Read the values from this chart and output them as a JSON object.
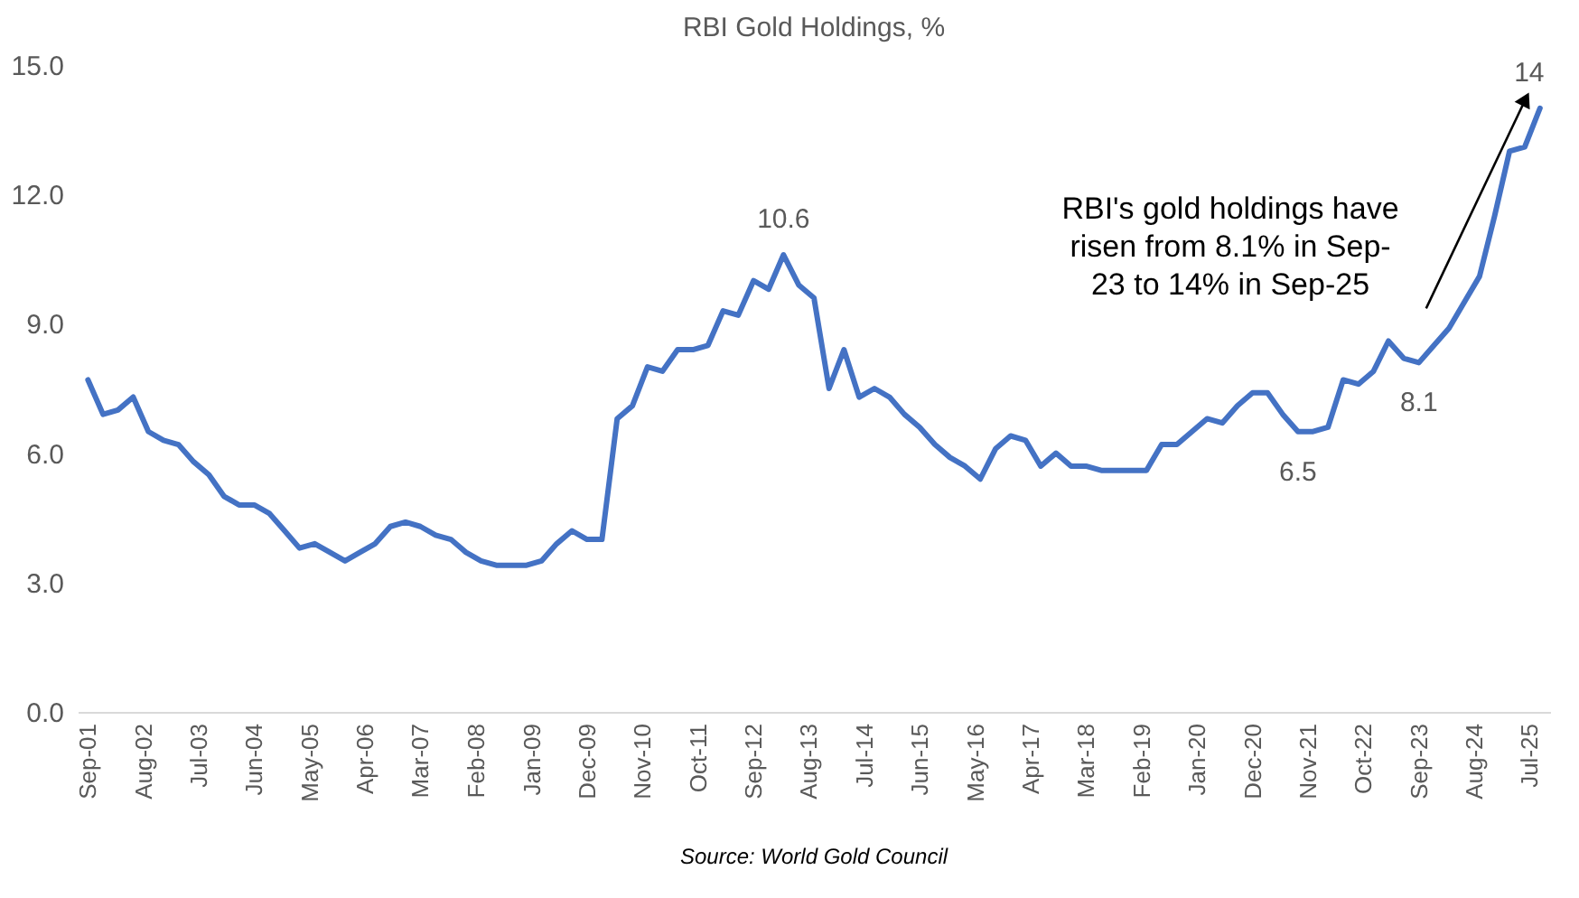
{
  "chart_data": {
    "type": "line",
    "title": "RBI Gold Holdings, %",
    "x": [
      "2001-09",
      "2001-12",
      "2002-03",
      "2002-06",
      "2002-09",
      "2002-12",
      "2003-03",
      "2003-06",
      "2003-09",
      "2003-12",
      "2004-03",
      "2004-06",
      "2004-09",
      "2004-12",
      "2005-03",
      "2005-06",
      "2005-09",
      "2005-12",
      "2006-03",
      "2006-06",
      "2006-09",
      "2006-12",
      "2007-03",
      "2007-06",
      "2007-09",
      "2007-12",
      "2008-03",
      "2008-06",
      "2008-09",
      "2008-12",
      "2009-03",
      "2009-06",
      "2009-09",
      "2009-12",
      "2010-03",
      "2010-06",
      "2010-09",
      "2010-12",
      "2011-03",
      "2011-06",
      "2011-09",
      "2011-12",
      "2012-03",
      "2012-06",
      "2012-09",
      "2012-12",
      "2013-03",
      "2013-06",
      "2013-09",
      "2013-12",
      "2014-03",
      "2014-06",
      "2014-09",
      "2014-12",
      "2015-03",
      "2015-06",
      "2015-09",
      "2015-12",
      "2016-03",
      "2016-06",
      "2016-09",
      "2016-12",
      "2017-03",
      "2017-06",
      "2017-09",
      "2017-12",
      "2018-03",
      "2018-06",
      "2018-09",
      "2018-12",
      "2019-03",
      "2019-06",
      "2019-09",
      "2019-12",
      "2020-03",
      "2020-06",
      "2020-09",
      "2020-12",
      "2021-03",
      "2021-06",
      "2021-09",
      "2021-12",
      "2022-03",
      "2022-06",
      "2022-09",
      "2022-12",
      "2023-03",
      "2023-06",
      "2023-09",
      "2023-12",
      "2024-03",
      "2024-06",
      "2024-09",
      "2024-12",
      "2025-03",
      "2025-06",
      "2025-09"
    ],
    "series": [
      {
        "color": "#4472c4",
        "values": [
          7.7,
          6.9,
          7.0,
          7.3,
          6.5,
          6.3,
          6.2,
          5.8,
          5.5,
          5.0,
          4.8,
          4.8,
          4.6,
          4.2,
          3.8,
          3.9,
          3.7,
          3.5,
          3.7,
          3.9,
          4.3,
          4.4,
          4.3,
          4.1,
          4.0,
          3.7,
          3.5,
          3.4,
          3.4,
          3.4,
          3.5,
          3.9,
          4.2,
          4.0,
          4.0,
          6.8,
          7.1,
          8.0,
          7.9,
          8.4,
          8.4,
          8.5,
          9.3,
          9.2,
          10.0,
          9.8,
          10.6,
          9.9,
          9.6,
          7.5,
          8.4,
          7.3,
          7.5,
          7.3,
          6.9,
          6.6,
          6.2,
          5.9,
          5.7,
          5.4,
          6.1,
          6.4,
          6.3,
          5.7,
          6.0,
          5.7,
          5.7,
          5.6,
          5.6,
          5.6,
          5.6,
          6.2,
          6.2,
          6.5,
          6.8,
          6.7,
          7.1,
          7.4,
          7.4,
          6.9,
          6.5,
          6.5,
          6.6,
          7.7,
          7.6,
          7.9,
          8.6,
          8.2,
          8.1,
          8.5,
          8.9,
          9.5,
          10.1,
          11.5,
          13.0,
          13.1,
          14.0
        ]
      }
    ],
    "xlim": [
      "2001-07",
      "2025-11"
    ],
    "xticks": [
      {
        "value": "2001-09",
        "label": "Sep-01"
      },
      {
        "value": "2002-08",
        "label": "Aug-02"
      },
      {
        "value": "2003-07",
        "label": "Jul-03"
      },
      {
        "value": "2004-06",
        "label": "Jun-04"
      },
      {
        "value": "2005-05",
        "label": "May-05"
      },
      {
        "value": "2006-04",
        "label": "Apr-06"
      },
      {
        "value": "2007-03",
        "label": "Mar-07"
      },
      {
        "value": "2008-02",
        "label": "Feb-08"
      },
      {
        "value": "2009-01",
        "label": "Jan-09"
      },
      {
        "value": "2009-12",
        "label": "Dec-09"
      },
      {
        "value": "2010-11",
        "label": "Nov-10"
      },
      {
        "value": "2011-10",
        "label": "Oct-11"
      },
      {
        "value": "2012-09",
        "label": "Sep-12"
      },
      {
        "value": "2013-08",
        "label": "Aug-13"
      },
      {
        "value": "2014-07",
        "label": "Jul-14"
      },
      {
        "value": "2015-06",
        "label": "Jun-15"
      },
      {
        "value": "2016-05",
        "label": "May-16"
      },
      {
        "value": "2017-04",
        "label": "Apr-17"
      },
      {
        "value": "2018-03",
        "label": "Mar-18"
      },
      {
        "value": "2019-02",
        "label": "Feb-19"
      },
      {
        "value": "2020-01",
        "label": "Jan-20"
      },
      {
        "value": "2020-12",
        "label": "Dec-20"
      },
      {
        "value": "2021-11",
        "label": "Nov-21"
      },
      {
        "value": "2022-10",
        "label": "Oct-22"
      },
      {
        "value": "2023-09",
        "label": "Sep-23"
      },
      {
        "value": "2024-08",
        "label": "Aug-24"
      },
      {
        "value": "2025-07",
        "label": "Jul-25"
      }
    ],
    "ylim": [
      0,
      15
    ],
    "yticks": [
      {
        "value": 0,
        "label": "0.0"
      },
      {
        "value": 3,
        "label": "3.0"
      },
      {
        "value": 6,
        "label": "6.0"
      },
      {
        "value": 9,
        "label": "9.0"
      },
      {
        "value": 12,
        "label": "12.0"
      },
      {
        "value": 15,
        "label": "15.0"
      }
    ],
    "grid": false,
    "marker": "none",
    "line_style": "solid",
    "annotations": [
      {
        "text": "10.6",
        "x": "2013-03",
        "y": 10.6
      },
      {
        "text": "6.5",
        "x": "2021-09",
        "y": 6.5
      },
      {
        "text": "8.1",
        "x": "2023-09",
        "y": 8.1
      },
      {
        "text": "14",
        "x": "2025-09",
        "y": 14.0
      },
      "RBI's gold holdings have\nrisen from 8.1% in Sep-\n23 to 14% in Sep-25",
      "Source: World Gold Council"
    ]
  }
}
